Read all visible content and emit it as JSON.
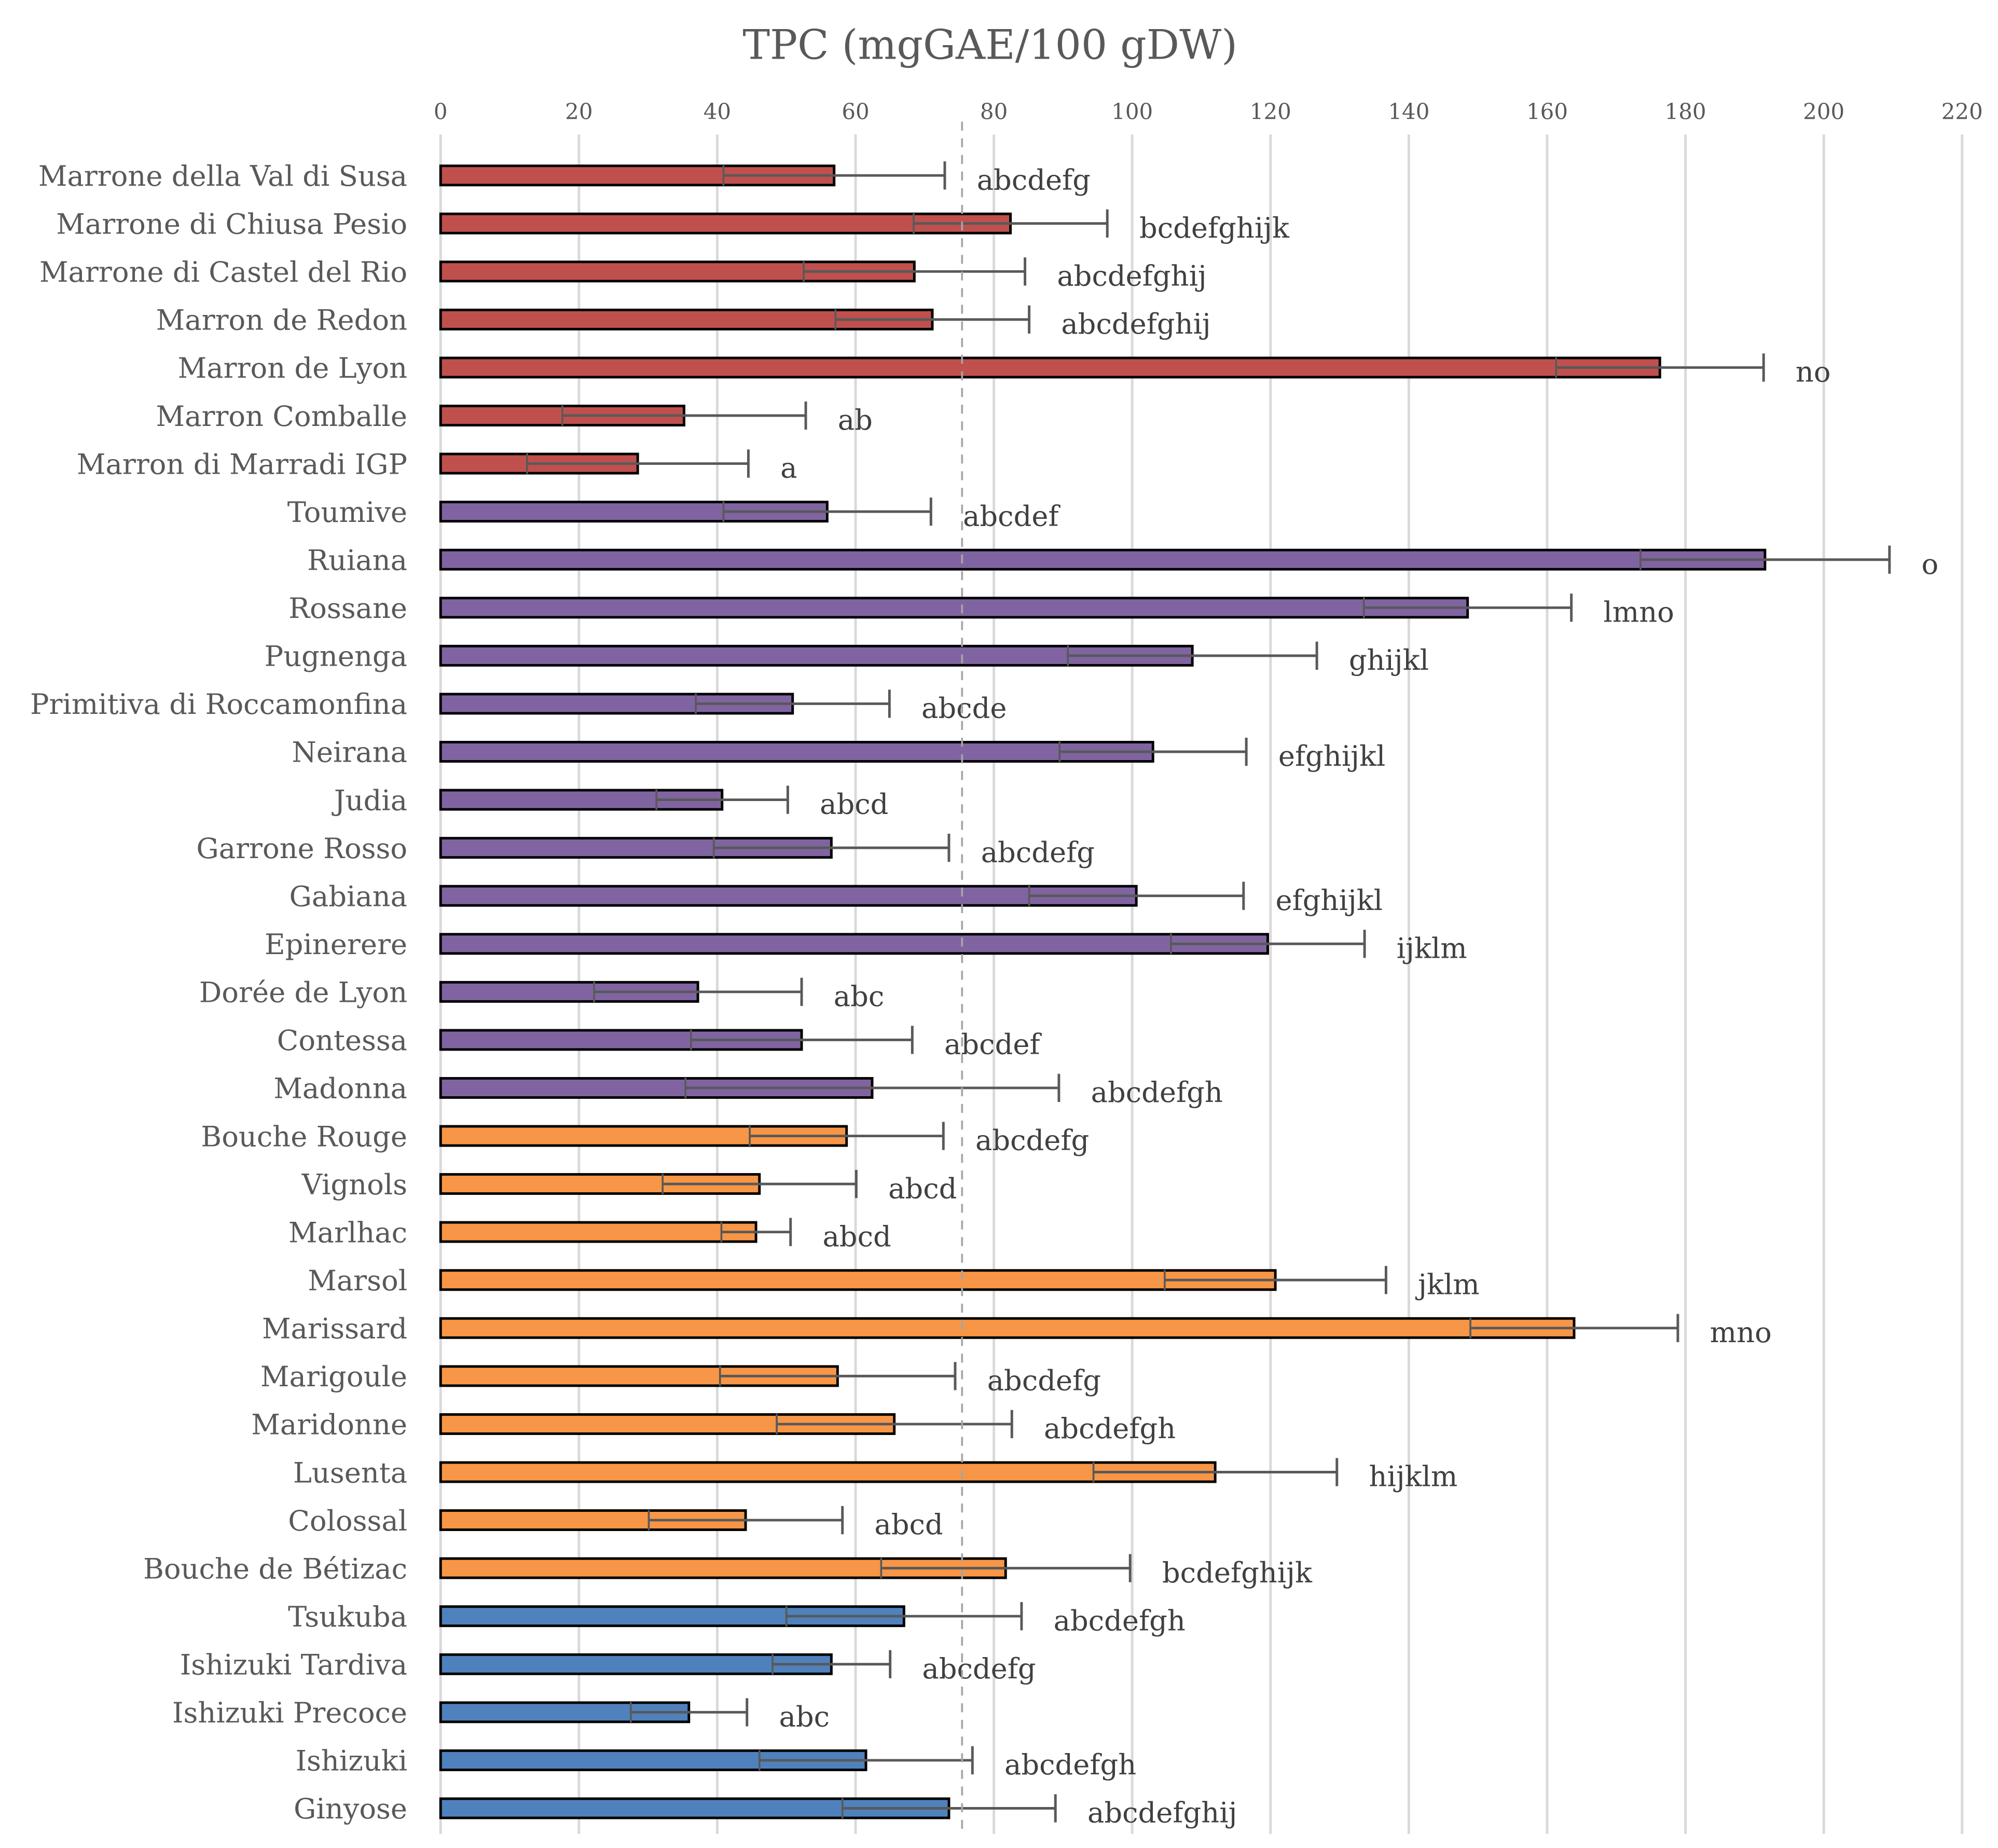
{
  "chart_data": {
    "type": "bar",
    "orientation": "horizontal",
    "title": "TPC (mgGAE/100 gDW)",
    "xlabel": "",
    "ylabel": "",
    "xlim": [
      0,
      220
    ],
    "xticks": [
      0,
      20,
      40,
      60,
      80,
      100,
      120,
      140,
      160,
      180,
      200,
      220
    ],
    "grid": true,
    "reference_line": 75.4,
    "group_colors": {
      "red": "#c0504d",
      "purple": "#8064a2",
      "orange": "#f79646",
      "blue": "#4f81bd"
    },
    "categories": [
      "Marrone della Val di Susa",
      "Marrone di Chiusa Pesio",
      "Marrone di Castel del Rio",
      "Marron de Redon",
      "Marron de Lyon",
      "Marron Comballe",
      "Marron di Marradi IGP",
      "Toumive",
      "Ruiana",
      "Rossane",
      "Pugnenga",
      "Primitiva di Roccamonfina",
      "Neirana",
      "Judia",
      "Garrone Rosso",
      "Gabiana",
      "Epinerere",
      "Dorée de Lyon",
      "Contessa",
      "Madonna",
      "Bouche Rouge",
      "Vignols",
      "Marlhac",
      "Marsol",
      "Marissard",
      "Marigoule",
      "Maridonne",
      "Lusenta",
      "Colossal",
      "Bouche de Bétizac",
      "Tsukuba",
      "Ishizuki Tardiva",
      "Ishizuki Precoce",
      "Ishizuki",
      "Ginyose"
    ],
    "values": [
      56.9,
      82.4,
      68.5,
      71.1,
      176.3,
      35.2,
      28.5,
      55.9,
      191.5,
      148.5,
      108.7,
      50.9,
      103.0,
      40.7,
      56.5,
      100.6,
      119.6,
      37.2,
      52.2,
      62.4,
      58.7,
      46.1,
      45.6,
      120.7,
      163.9,
      57.4,
      65.6,
      112.0,
      44.1,
      81.7,
      67.0,
      56.5,
      35.9,
      61.5,
      73.5
    ],
    "errors": [
      16,
      14,
      16,
      14,
      15,
      17.6,
      16,
      15,
      18,
      15,
      18,
      14,
      13.5,
      9.5,
      17,
      15.5,
      14,
      15,
      16,
      27,
      14,
      14,
      5,
      16,
      15,
      17,
      17,
      17.6,
      14,
      18,
      17,
      8.5,
      8.4,
      15.4,
      15.4
    ],
    "groups": [
      "red",
      "red",
      "red",
      "red",
      "red",
      "red",
      "red",
      "purple",
      "purple",
      "purple",
      "purple",
      "purple",
      "purple",
      "purple",
      "purple",
      "purple",
      "purple",
      "purple",
      "purple",
      "purple",
      "orange",
      "orange",
      "orange",
      "orange",
      "orange",
      "orange",
      "orange",
      "orange",
      "orange",
      "orange",
      "blue",
      "blue",
      "blue",
      "blue",
      "blue"
    ],
    "letters": [
      "abcdefg",
      "bcdefghijk",
      "abcdefghij",
      "abcdefghij",
      "no",
      "ab",
      "a",
      "abcdef",
      "o",
      "lmno",
      "ghijkl",
      "abcde",
      "efghijkl",
      "abcd",
      "abcdefg",
      "efghijkl",
      "ijklm",
      "abc",
      "abcdef",
      "abcdefgh",
      "abcdefg",
      "abcd",
      "abcd",
      "jklm",
      "mno",
      "abcdefg",
      "abcdefgh",
      "hijklm",
      "abcd",
      "bcdefghijk",
      "abcdefgh",
      "abcdefg",
      "abc",
      "abcdefgh",
      "abcdefghij"
    ]
  }
}
